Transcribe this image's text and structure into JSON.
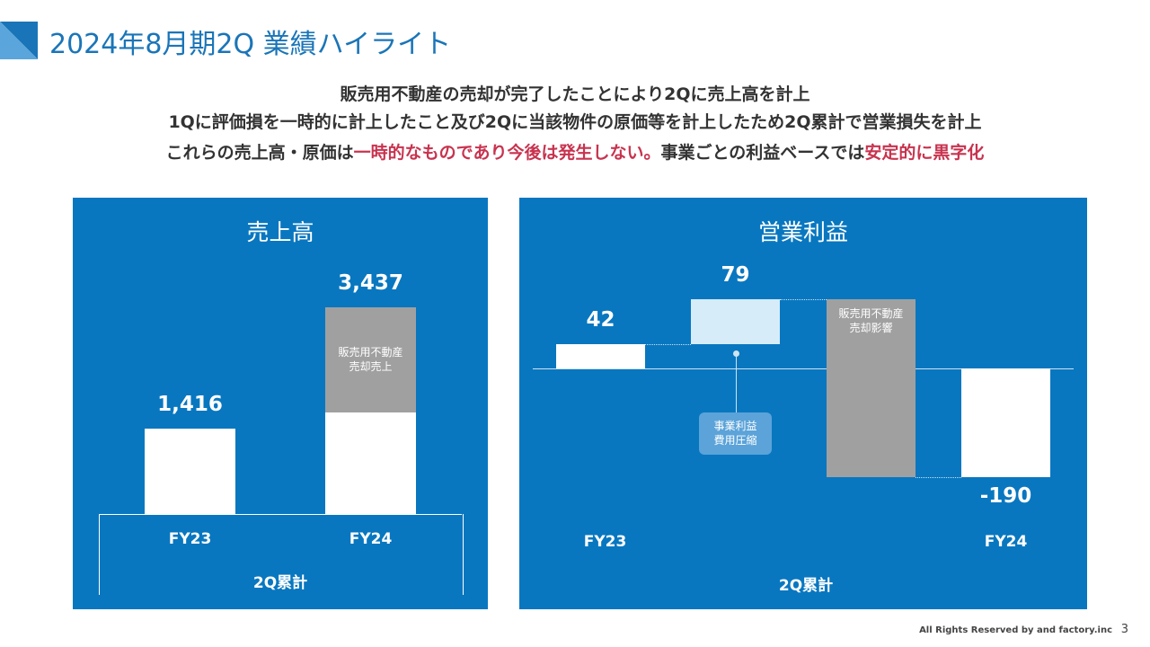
{
  "header": {
    "title": "2024年8月期2Q 業績ハイライト"
  },
  "message": {
    "lines": [
      [
        {
          "text": "販売用不動産の売却が完了したことにより2Qに売上高を計上",
          "highlight": false
        }
      ],
      [
        {
          "text": "1Qに評価損を一時的に計上したこと及び2Qに当該物件の原価等を計上したため2Q累計で営業損失を計上",
          "highlight": false
        }
      ],
      [
        {
          "text": "これらの売上高・原価は",
          "highlight": false
        },
        {
          "text": "一時的なものであり今後は発生しない。",
          "highlight": true
        },
        {
          "text": "事業ごとの利益ベースでは",
          "highlight": false
        },
        {
          "text": "安定的に黒字化",
          "highlight": true
        }
      ]
    ]
  },
  "chart_data": [
    {
      "type": "bar",
      "title": "売上高",
      "stacked": true,
      "categories": [
        "FY23",
        "FY24"
      ],
      "x_label": "2Q累計",
      "series": [
        {
          "color": "#ffffff",
          "values": [
            1416,
            1689
          ]
        },
        {
          "name": "販売用不動産売却売上",
          "color": "#a0a0a0",
          "values": [
            null,
            1748
          ]
        }
      ],
      "totals": [
        1416,
        3437
      ],
      "total_labels": [
        "1,416",
        "3,437"
      ],
      "ylim": [
        0,
        4000
      ]
    },
    {
      "type": "waterfall",
      "title": "営業利益",
      "categories": [
        "FY23",
        null,
        null,
        "FY24"
      ],
      "x_label": "2Q累計",
      "measures": [
        "absolute",
        "relative",
        "relative",
        "total"
      ],
      "values": [
        42,
        79,
        -311,
        -190
      ],
      "value_labels": [
        "42",
        "79",
        null,
        "-190"
      ],
      "colors": [
        "#ffffff",
        "#d6ecf9",
        "#a0a0a0",
        "#ffffff"
      ],
      "annotations": [
        null,
        "事業利益費用圧縮",
        "販売用不動産売却影響",
        null
      ],
      "ylim": [
        -236,
        173
      ]
    }
  ],
  "footer": {
    "copyright": "All Rights Reserved by and factory.inc",
    "page": "3"
  }
}
